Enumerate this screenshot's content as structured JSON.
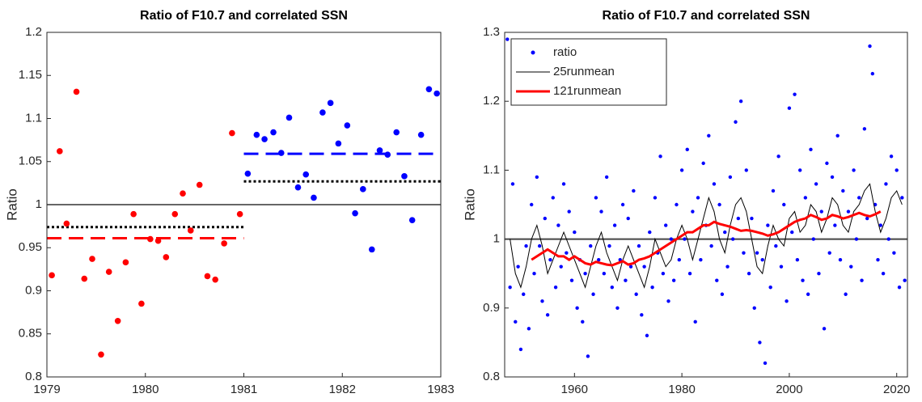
{
  "chart_data": [
    {
      "type": "scatter",
      "title": "Ratio of F10.7 and correlated SSN",
      "y_label": "Ratio",
      "xlim": [
        1979,
        1983
      ],
      "xticks": [
        1979,
        1980,
        1981,
        1982,
        1983
      ],
      "ylim": [
        0.8,
        1.2
      ],
      "yticks": [
        0.8,
        0.85,
        0.9,
        0.95,
        1,
        1.05,
        1.1,
        1.15,
        1.2
      ],
      "series": [
        {
          "style": "markers",
          "color": "#ff0000",
          "x": [
            1979.05,
            1979.13,
            1979.2,
            1979.3,
            1979.38,
            1979.46,
            1979.55,
            1979.63,
            1979.72,
            1979.8,
            1979.88,
            1979.96,
            1980.05,
            1980.13,
            1980.21,
            1980.3,
            1980.38,
            1980.46,
            1980.55,
            1980.63,
            1980.71,
            1980.8,
            1980.88,
            1980.96
          ],
          "values": [
            0.918,
            1.062,
            0.978,
            1.131,
            0.914,
            0.937,
            0.826,
            0.922,
            0.865,
            0.933,
            0.989,
            0.885,
            0.96,
            0.958,
            0.939,
            0.989,
            1.013,
            0.97,
            1.023,
            0.917,
            0.913,
            0.955,
            1.083,
            0.989
          ]
        },
        {
          "style": "markers",
          "color": "#0000ff",
          "x": [
            1981.04,
            1981.13,
            1981.21,
            1981.3,
            1981.38,
            1981.46,
            1981.55,
            1981.63,
            1981.71,
            1981.8,
            1981.88,
            1981.96,
            1982.05,
            1982.13,
            1982.21,
            1982.3,
            1982.38,
            1982.46,
            1982.55,
            1982.63,
            1982.71,
            1982.8,
            1982.88,
            1982.96
          ],
          "values": [
            1.036,
            1.081,
            1.076,
            1.084,
            1.06,
            1.101,
            1.02,
            1.035,
            1.008,
            1.107,
            1.118,
            1.071,
            1.092,
            0.99,
            1.018,
            0.948,
            1.063,
            1.058,
            1.084,
            1.033,
            0.982,
            1.081,
            1.134,
            1.129
          ]
        }
      ],
      "reference_lines": [
        {
          "y": 1,
          "x": [
            1979,
            1983
          ],
          "color": "#666666",
          "dash": "solid"
        },
        {
          "y": 0.961,
          "x": [
            1979,
            1981
          ],
          "color": "#ff0000",
          "dash": "dashed"
        },
        {
          "y": 0.974,
          "x": [
            1979,
            1981
          ],
          "color": "#000000",
          "dash": "dotted"
        },
        {
          "y": 1.059,
          "x": [
            1981,
            1983
          ],
          "color": "#0000ff",
          "dash": "dashed"
        },
        {
          "y": 1.027,
          "x": [
            1981,
            1983
          ],
          "color": "#000000",
          "dash": "dotted"
        }
      ]
    },
    {
      "type": "scatter",
      "title": "Ratio of F10.7 and correlated SSN",
      "y_label": "Ratio",
      "xlim": [
        1947,
        2022
      ],
      "xticks": [
        1960,
        1980,
        2000,
        2020
      ],
      "ylim": [
        0.8,
        1.3
      ],
      "yticks": [
        0.8,
        0.9,
        1,
        1.1,
        1.2,
        1.3
      ],
      "legend": "upper-left",
      "series": [
        {
          "name": "ratio",
          "style": "markers",
          "color": "#0000ff",
          "x": [
            1947.5,
            1948,
            1948.5,
            1949,
            1949.5,
            1950,
            1950.5,
            1951,
            1951.5,
            1952,
            1952.5,
            1953,
            1953.5,
            1954,
            1954.5,
            1955,
            1955.5,
            1956,
            1956.5,
            1957,
            1957.5,
            1958,
            1958.5,
            1959,
            1959.5,
            1960,
            1960.5,
            1961,
            1961.5,
            1962,
            1962.5,
            1963,
            1963.5,
            1964,
            1964.5,
            1965,
            1965.5,
            1966,
            1966.5,
            1967,
            1967.5,
            1968,
            1968.5,
            1969,
            1969.5,
            1970,
            1970.5,
            1971,
            1971.5,
            1972,
            1972.5,
            1973,
            1973.5,
            1974,
            1974.5,
            1975,
            1975.5,
            1976,
            1976.5,
            1977,
            1977.5,
            1978,
            1978.5,
            1979,
            1979.5,
            1980,
            1980.5,
            1981,
            1981.5,
            1982,
            1982.5,
            1983,
            1983.5,
            1984,
            1984.5,
            1985,
            1985.5,
            1986,
            1986.5,
            1987,
            1987.5,
            1988,
            1988.5,
            1989,
            1989.5,
            1990,
            1990.5,
            1991,
            1991.5,
            1992,
            1992.5,
            1993,
            1993.5,
            1994,
            1994.5,
            1995,
            1995.5,
            1996,
            1996.5,
            1997,
            1997.5,
            1998,
            1998.5,
            1999,
            1999.5,
            2000,
            2000.5,
            2001,
            2001.5,
            2002,
            2002.5,
            2003,
            2003.5,
            2004,
            2004.5,
            2005,
            2005.5,
            2006,
            2006.5,
            2007,
            2007.5,
            2008,
            2008.5,
            2009,
            2009.5,
            2010,
            2010.5,
            2011,
            2011.5,
            2012,
            2012.5,
            2013,
            2013.5,
            2014,
            2014.5,
            2015,
            2015.5,
            2016,
            2016.5,
            2017,
            2017.5,
            2018,
            2018.5,
            2019,
            2019.5,
            2020,
            2020.5,
            2021,
            2021.5
          ],
          "values": [
            1.29,
            0.93,
            1.08,
            0.88,
            0.96,
            0.84,
            0.92,
            0.99,
            0.87,
            1.05,
            0.95,
            1.09,
            0.99,
            0.91,
            1.03,
            0.89,
            0.97,
            1.06,
            0.93,
            1.02,
            0.96,
            1.08,
            0.98,
            1.04,
            0.94,
            1.01,
            0.9,
            0.97,
            0.88,
            0.95,
            0.83,
            0.99,
            0.92,
            1.06,
            0.97,
            1.04,
            0.95,
            1.09,
            0.99,
            0.93,
            1.02,
            0.9,
            0.97,
            1.05,
            0.94,
            1.03,
            0.96,
            1.07,
            0.92,
            0.99,
            0.89,
            0.96,
            0.86,
            1.01,
            0.93,
            1.06,
            0.98,
            1.12,
            0.95,
            1.02,
            0.91,
            1.0,
            0.94,
            1.05,
            0.97,
            1.1,
            1.0,
            1.13,
            0.95,
            1.04,
            0.88,
            1.06,
            0.97,
            1.11,
            1.02,
            1.15,
            0.99,
            1.08,
            0.94,
            1.05,
            0.92,
            1.01,
            0.96,
            1.09,
            1.0,
            1.17,
            1.03,
            1.2,
            0.98,
            1.1,
            0.95,
            1.03,
            0.9,
            0.98,
            0.85,
            0.97,
            0.82,
            1.02,
            0.93,
            1.07,
            0.99,
            1.12,
            0.96,
            1.05,
            0.91,
            1.19,
            1.01,
            1.21,
            0.97,
            1.1,
            0.94,
            1.06,
            0.92,
            1.13,
            1.0,
            1.08,
            0.95,
            1.04,
            0.87,
            1.11,
            0.98,
            1.09,
            1.02,
            1.15,
            0.97,
            1.07,
            0.92,
            1.04,
            0.96,
            1.1,
            1.0,
            1.06,
            0.94,
            1.16,
            1.03,
            1.28,
            1.24,
            1.05,
            0.97,
            1.02,
            0.95,
            1.08,
            1.0,
            1.12,
            0.98,
            1.1,
            0.93,
            1.06,
            0.94
          ]
        },
        {
          "name": "25runmean",
          "style": "line",
          "width": 1,
          "color": "#000000",
          "x": [
            1948,
            1949,
            1950,
            1951,
            1952,
            1953,
            1954,
            1955,
            1956,
            1957,
            1958,
            1959,
            1960,
            1961,
            1962,
            1963,
            1964,
            1965,
            1966,
            1967,
            1968,
            1969,
            1970,
            1971,
            1972,
            1973,
            1974,
            1975,
            1976,
            1977,
            1978,
            1979,
            1980,
            1981,
            1982,
            1983,
            1984,
            1985,
            1986,
            1987,
            1988,
            1989,
            1990,
            1991,
            1992,
            1993,
            1994,
            1995,
            1996,
            1997,
            1998,
            1999,
            2000,
            2001,
            2002,
            2003,
            2004,
            2005,
            2006,
            2007,
            2008,
            2009,
            2010,
            2011,
            2012,
            2013,
            2014,
            2015,
            2016,
            2017,
            2018,
            2019,
            2020,
            2021
          ],
          "values": [
            1.0,
            0.95,
            0.93,
            0.96,
            1.0,
            1.02,
            0.99,
            0.95,
            0.97,
            0.99,
            1.01,
            0.99,
            0.97,
            0.95,
            0.93,
            0.96,
            0.99,
            1.01,
            0.98,
            0.96,
            0.94,
            0.97,
            0.99,
            0.97,
            0.95,
            0.93,
            0.96,
            1.0,
            0.98,
            0.96,
            0.97,
            1.0,
            1.02,
            1.0,
            0.97,
            1.0,
            1.03,
            1.06,
            1.04,
            1.0,
            0.98,
            1.02,
            1.05,
            1.06,
            1.04,
            1.0,
            0.96,
            0.95,
            0.99,
            1.02,
            1.0,
            0.99,
            1.03,
            1.04,
            1.01,
            1.02,
            1.05,
            1.04,
            1.01,
            1.03,
            1.06,
            1.05,
            1.02,
            1.01,
            1.04,
            1.05,
            1.07,
            1.08,
            1.04,
            1.01,
            1.03,
            1.06,
            1.07,
            1.05
          ]
        },
        {
          "name": "121runmean",
          "style": "line",
          "width": 3,
          "color": "#ff0000",
          "x": [
            1952,
            1953,
            1954,
            1955,
            1956,
            1957,
            1958,
            1959,
            1960,
            1961,
            1962,
            1963,
            1964,
            1965,
            1966,
            1967,
            1968,
            1969,
            1970,
            1971,
            1972,
            1973,
            1974,
            1975,
            1976,
            1977,
            1978,
            1979,
            1980,
            1981,
            1982,
            1983,
            1984,
            1985,
            1986,
            1987,
            1988,
            1989,
            1990,
            1991,
            1992,
            1993,
            1994,
            1995,
            1996,
            1997,
            1998,
            1999,
            2000,
            2001,
            2002,
            2003,
            2004,
            2005,
            2006,
            2007,
            2008,
            2009,
            2010,
            2011,
            2012,
            2013,
            2014,
            2015,
            2016,
            2017
          ],
          "values": [
            0.97,
            0.975,
            0.98,
            0.985,
            0.98,
            0.975,
            0.975,
            0.97,
            0.975,
            0.97,
            0.965,
            0.963,
            0.967,
            0.965,
            0.963,
            0.962,
            0.965,
            0.968,
            0.963,
            0.965,
            0.97,
            0.972,
            0.975,
            0.98,
            0.985,
            0.99,
            0.995,
            1.0,
            1.005,
            1.01,
            1.01,
            1.015,
            1.02,
            1.02,
            1.025,
            1.022,
            1.02,
            1.018,
            1.015,
            1.012,
            1.013,
            1.012,
            1.01,
            1.008,
            1.005,
            1.007,
            1.01,
            1.015,
            1.02,
            1.025,
            1.028,
            1.03,
            1.035,
            1.032,
            1.028,
            1.03,
            1.035,
            1.033,
            1.03,
            1.032,
            1.035,
            1.038,
            1.035,
            1.033,
            1.036,
            1.04
          ]
        }
      ],
      "reference_lines": [
        {
          "y": 1,
          "x": [
            1947,
            2022
          ],
          "color": "#444444",
          "dash": "solid"
        }
      ]
    }
  ]
}
